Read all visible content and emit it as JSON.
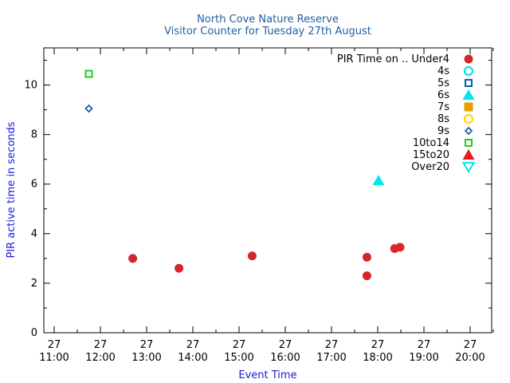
{
  "chart_data": {
    "type": "scatter",
    "title": "North Cove Nature Reserve",
    "subtitle": "Visitor Counter for Tuesday 27th August",
    "xlabel": "Event Time",
    "ylabel": "PIR active time in seconds",
    "title_color": "#1f5f9f",
    "label_color": "#1a1ad6",
    "x_axis": {
      "unit": "time of day",
      "min": "11:00",
      "max": "20:30",
      "minor_ticks_per_major": 2,
      "ticks": [
        {
          "day": "27",
          "time": "11:00",
          "x": "11:00"
        },
        {
          "day": "27",
          "time": "12:00",
          "x": "12:00"
        },
        {
          "day": "27",
          "time": "13:00",
          "x": "13:00"
        },
        {
          "day": "27",
          "time": "14:00",
          "x": "14:00"
        },
        {
          "day": "27",
          "time": "15:00",
          "x": "15:00"
        },
        {
          "day": "27",
          "time": "16:00",
          "x": "16:00"
        },
        {
          "day": "27",
          "time": "17:00",
          "x": "17:00"
        },
        {
          "day": "27",
          "time": "18:00",
          "x": "18:00"
        },
        {
          "day": "27",
          "time": "19:00",
          "x": "19:00"
        },
        {
          "day": "27",
          "time": "20:00",
          "x": "20:00"
        }
      ]
    },
    "y_axis": {
      "min": 0,
      "max": 11.5,
      "minor_ticks_per_major": 2,
      "ticks": [
        0,
        2,
        4,
        6,
        8,
        10
      ]
    },
    "grid": false,
    "legend_position": "top-right",
    "legend_title": "PIR Time on ..",
    "series": [
      {
        "name": "Under4",
        "marker": "circle-filled",
        "color": "#d62728",
        "points": [
          {
            "x": "12:42",
            "y": 3.0
          },
          {
            "x": "13:42",
            "y": 2.6
          },
          {
            "x": "15:17",
            "y": 3.1
          },
          {
            "x": "17:46",
            "y": 3.05
          },
          {
            "x": "17:46",
            "y": 2.3
          },
          {
            "x": "18:22",
            "y": 3.4
          },
          {
            "x": "18:29",
            "y": 3.45
          }
        ]
      },
      {
        "name": "4s",
        "marker": "circle-open",
        "color": "#00e5ee",
        "points": []
      },
      {
        "name": "5s",
        "marker": "square-open",
        "color": "#0060ad",
        "points": []
      },
      {
        "name": "6s",
        "marker": "triangle-filled",
        "color": "#00e5ee",
        "points": [
          {
            "x": "18:01",
            "y": 6.15
          }
        ]
      },
      {
        "name": "7s",
        "marker": "square-filled",
        "color": "#e69f00",
        "points": []
      },
      {
        "name": "8s",
        "marker": "circle-open",
        "color": "#ffd700",
        "points": []
      },
      {
        "name": "9s",
        "marker": "diamond-open",
        "color": "#1f5fa8",
        "points": [
          {
            "x": "11:45",
            "y": 9.05
          }
        ]
      },
      {
        "name": "10to14",
        "marker": "square-open",
        "color": "#22cc22",
        "points": [
          {
            "x": "11:45",
            "y": 10.45
          }
        ]
      },
      {
        "name": "15to20",
        "marker": "triangle-filled",
        "color": "#e41a1c",
        "points": []
      },
      {
        "name": "Over20",
        "marker": "triangle-down-open",
        "color": "#00e5ee",
        "points": []
      }
    ]
  }
}
